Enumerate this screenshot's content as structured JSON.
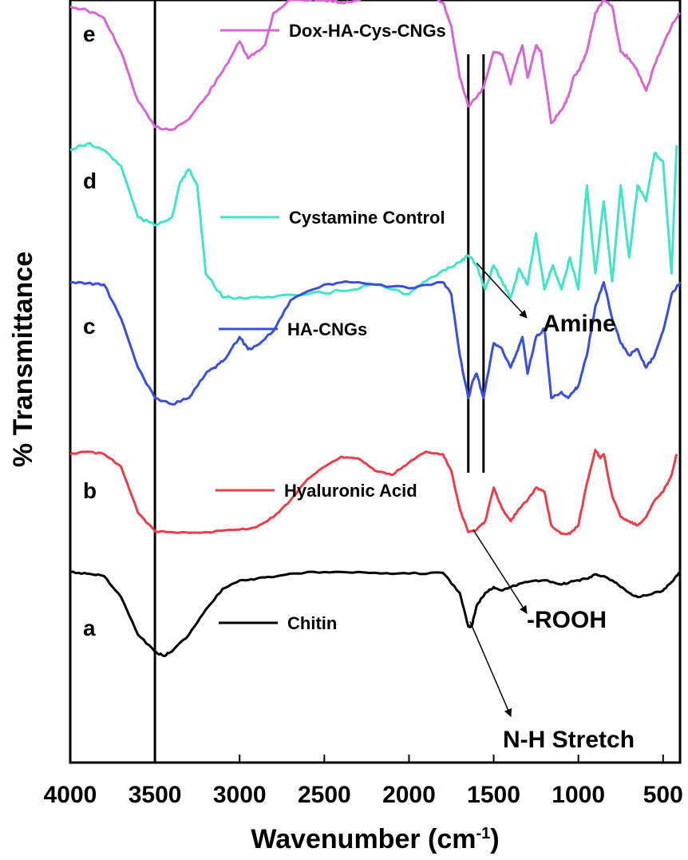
{
  "chart_data": {
    "type": "line",
    "title": "",
    "xlabel": "Wavenumber (cm",
    "xlabel_sup": "-1",
    "xlabel_close": ")",
    "ylabel": "% Transmittance",
    "xlim": [
      4000,
      400
    ],
    "x_reversed": true,
    "y_ticks_shown": false,
    "grid": false,
    "x_ticks": [
      4000,
      3500,
      3000,
      2500,
      2000,
      1500,
      1000,
      500
    ],
    "x_tick_labels": [
      "4000",
      "3500",
      "3000",
      "2500",
      "2000",
      "1500",
      "1000",
      "500"
    ],
    "y_unit": "relative transmittance (stacked, offset per spectrum; 0 = panel top, 1 = panel bottom)",
    "series": [
      {
        "name": "Dox-HA-Cys-CNGs",
        "letter": "e",
        "color": "#d966d6",
        "band": [
          0.0,
          0.17
        ],
        "points": [
          [
            4000,
            0.05
          ],
          [
            3900,
            0.08
          ],
          [
            3800,
            0.14
          ],
          [
            3700,
            0.4
          ],
          [
            3600,
            0.78
          ],
          [
            3500,
            0.98
          ],
          [
            3400,
            1.0
          ],
          [
            3300,
            0.92
          ],
          [
            3200,
            0.75
          ],
          [
            3100,
            0.55
          ],
          [
            3000,
            0.32
          ],
          [
            2950,
            0.45
          ],
          [
            2900,
            0.4
          ],
          [
            2850,
            0.35
          ],
          [
            2800,
            0.1
          ],
          [
            2700,
            0.0
          ],
          [
            2500,
            0.0
          ],
          [
            2400,
            0.02
          ],
          [
            2300,
            0.0
          ],
          [
            2100,
            -0.05
          ],
          [
            1900,
            -0.06
          ],
          [
            1800,
            0.02
          ],
          [
            1750,
            0.2
          ],
          [
            1700,
            0.6
          ],
          [
            1650,
            0.82
          ],
          [
            1600,
            0.75
          ],
          [
            1560,
            0.68
          ],
          [
            1500,
            0.4
          ],
          [
            1450,
            0.42
          ],
          [
            1400,
            0.65
          ],
          [
            1370,
            0.5
          ],
          [
            1330,
            0.35
          ],
          [
            1300,
            0.6
          ],
          [
            1250,
            0.35
          ],
          [
            1220,
            0.4
          ],
          [
            1160,
            0.95
          ],
          [
            1100,
            0.85
          ],
          [
            1060,
            0.75
          ],
          [
            1030,
            0.6
          ],
          [
            1000,
            0.55
          ],
          [
            950,
            0.4
          ],
          [
            900,
            0.1
          ],
          [
            850,
            0.0
          ],
          [
            800,
            0.05
          ],
          [
            750,
            0.4
          ],
          [
            700,
            0.45
          ],
          [
            650,
            0.55
          ],
          [
            600,
            0.7
          ],
          [
            550,
            0.5
          ],
          [
            500,
            0.35
          ],
          [
            450,
            0.2
          ],
          [
            400,
            0.1
          ]
        ]
      },
      {
        "name": "Cystamine Control",
        "letter": "d",
        "color": "#3fe6c8",
        "band": [
          0.18,
          0.39
        ],
        "points": [
          [
            4000,
            0.08
          ],
          [
            3900,
            0.04
          ],
          [
            3800,
            0.08
          ],
          [
            3700,
            0.18
          ],
          [
            3600,
            0.5
          ],
          [
            3500,
            0.55
          ],
          [
            3400,
            0.5
          ],
          [
            3350,
            0.28
          ],
          [
            3300,
            0.2
          ],
          [
            3250,
            0.3
          ],
          [
            3200,
            0.85
          ],
          [
            3100,
            1.0
          ],
          [
            3000,
            1.0
          ],
          [
            2800,
            1.0
          ],
          [
            2600,
            0.98
          ],
          [
            2400,
            0.96
          ],
          [
            2200,
            0.92
          ],
          [
            2000,
            0.98
          ],
          [
            1900,
            0.9
          ],
          [
            1800,
            0.83
          ],
          [
            1700,
            0.78
          ],
          [
            1650,
            0.74
          ],
          [
            1600,
            0.8
          ],
          [
            1550,
            0.95
          ],
          [
            1500,
            0.8
          ],
          [
            1450,
            0.9
          ],
          [
            1400,
            1.0
          ],
          [
            1350,
            0.82
          ],
          [
            1300,
            0.92
          ],
          [
            1250,
            0.6
          ],
          [
            1200,
            0.95
          ],
          [
            1150,
            0.8
          ],
          [
            1100,
            0.95
          ],
          [
            1050,
            0.75
          ],
          [
            1000,
            0.95
          ],
          [
            950,
            0.3
          ],
          [
            900,
            0.85
          ],
          [
            850,
            0.4
          ],
          [
            800,
            0.9
          ],
          [
            750,
            0.3
          ],
          [
            700,
            0.75
          ],
          [
            650,
            0.3
          ],
          [
            600,
            0.4
          ],
          [
            550,
            0.1
          ],
          [
            500,
            0.15
          ],
          [
            450,
            0.85
          ],
          [
            420,
            0.05
          ]
        ]
      },
      {
        "name": "HA-CNGs",
        "letter": "c",
        "color": "#3a4fe0",
        "band": [
          0.37,
          0.53
        ],
        "points": [
          [
            4000,
            0.0
          ],
          [
            3900,
            0.01
          ],
          [
            3800,
            0.02
          ],
          [
            3700,
            0.3
          ],
          [
            3600,
            0.7
          ],
          [
            3500,
            0.95
          ],
          [
            3400,
            1.0
          ],
          [
            3300,
            0.95
          ],
          [
            3200,
            0.75
          ],
          [
            3150,
            0.7
          ],
          [
            3100,
            0.65
          ],
          [
            3000,
            0.45
          ],
          [
            2950,
            0.55
          ],
          [
            2900,
            0.52
          ],
          [
            2800,
            0.4
          ],
          [
            2700,
            0.15
          ],
          [
            2500,
            0.02
          ],
          [
            2350,
            0.0
          ],
          [
            2200,
            0.02
          ],
          [
            2000,
            0.05
          ],
          [
            1800,
            0.0
          ],
          [
            1750,
            0.1
          ],
          [
            1700,
            0.6
          ],
          [
            1650,
            0.95
          ],
          [
            1620,
            0.8
          ],
          [
            1600,
            0.75
          ],
          [
            1560,
            0.95
          ],
          [
            1500,
            0.5
          ],
          [
            1450,
            0.55
          ],
          [
            1400,
            0.7
          ],
          [
            1370,
            0.6
          ],
          [
            1330,
            0.45
          ],
          [
            1300,
            0.75
          ],
          [
            1250,
            0.45
          ],
          [
            1200,
            0.38
          ],
          [
            1160,
            0.95
          ],
          [
            1100,
            0.9
          ],
          [
            1060,
            0.95
          ],
          [
            1030,
            0.9
          ],
          [
            1000,
            0.85
          ],
          [
            950,
            0.6
          ],
          [
            900,
            0.2
          ],
          [
            850,
            0.0
          ],
          [
            800,
            0.3
          ],
          [
            750,
            0.5
          ],
          [
            700,
            0.6
          ],
          [
            650,
            0.55
          ],
          [
            600,
            0.7
          ],
          [
            550,
            0.6
          ],
          [
            500,
            0.4
          ],
          [
            450,
            0.1
          ],
          [
            400,
            0.0
          ]
        ]
      },
      {
        "name": "Hyaluronic Acid",
        "letter": "b",
        "color": "#ee3d4a",
        "band": [
          0.59,
          0.7
        ],
        "points": [
          [
            4000,
            0.05
          ],
          [
            3900,
            0.02
          ],
          [
            3800,
            0.05
          ],
          [
            3700,
            0.2
          ],
          [
            3600,
            0.75
          ],
          [
            3500,
            0.97
          ],
          [
            3400,
            0.98
          ],
          [
            3200,
            0.98
          ],
          [
            3000,
            0.95
          ],
          [
            2900,
            0.92
          ],
          [
            2800,
            0.8
          ],
          [
            2700,
            0.6
          ],
          [
            2600,
            0.35
          ],
          [
            2500,
            0.2
          ],
          [
            2400,
            0.08
          ],
          [
            2300,
            0.1
          ],
          [
            2200,
            0.25
          ],
          [
            2100,
            0.3
          ],
          [
            2000,
            0.15
          ],
          [
            1900,
            0.02
          ],
          [
            1800,
            0.05
          ],
          [
            1750,
            0.25
          ],
          [
            1700,
            0.7
          ],
          [
            1650,
            0.98
          ],
          [
            1600,
            0.95
          ],
          [
            1550,
            0.85
          ],
          [
            1500,
            0.45
          ],
          [
            1450,
            0.7
          ],
          [
            1400,
            0.85
          ],
          [
            1350,
            0.7
          ],
          [
            1300,
            0.6
          ],
          [
            1250,
            0.45
          ],
          [
            1200,
            0.5
          ],
          [
            1160,
            0.9
          ],
          [
            1100,
            1.0
          ],
          [
            1050,
            1.0
          ],
          [
            1000,
            0.9
          ],
          [
            950,
            0.4
          ],
          [
            900,
            0.0
          ],
          [
            870,
            0.1
          ],
          [
            850,
            0.05
          ],
          [
            800,
            0.55
          ],
          [
            750,
            0.8
          ],
          [
            700,
            0.85
          ],
          [
            650,
            0.9
          ],
          [
            600,
            0.8
          ],
          [
            550,
            0.6
          ],
          [
            500,
            0.5
          ],
          [
            450,
            0.3
          ],
          [
            420,
            0.05
          ]
        ]
      },
      {
        "name": "Chitin",
        "letter": "a",
        "color": "#000000",
        "band": [
          0.75,
          0.86
        ],
        "points": [
          [
            4000,
            0.0
          ],
          [
            3900,
            0.02
          ],
          [
            3800,
            0.05
          ],
          [
            3700,
            0.3
          ],
          [
            3600,
            0.75
          ],
          [
            3500,
            0.95
          ],
          [
            3450,
            1.0
          ],
          [
            3400,
            0.95
          ],
          [
            3300,
            0.75
          ],
          [
            3200,
            0.45
          ],
          [
            3100,
            0.2
          ],
          [
            3000,
            0.1
          ],
          [
            2900,
            0.08
          ],
          [
            2800,
            0.06
          ],
          [
            2600,
            0.0
          ],
          [
            2400,
            0.0
          ],
          [
            2200,
            0.01
          ],
          [
            2000,
            0.02
          ],
          [
            1800,
            0.01
          ],
          [
            1700,
            0.25
          ],
          [
            1650,
            0.65
          ],
          [
            1630,
            0.65
          ],
          [
            1600,
            0.4
          ],
          [
            1550,
            0.25
          ],
          [
            1500,
            0.18
          ],
          [
            1450,
            0.22
          ],
          [
            1400,
            0.18
          ],
          [
            1300,
            0.12
          ],
          [
            1200,
            0.1
          ],
          [
            1100,
            0.15
          ],
          [
            1050,
            0.12
          ],
          [
            1000,
            0.1
          ],
          [
            950,
            0.08
          ],
          [
            900,
            0.03
          ],
          [
            850,
            0.05
          ],
          [
            800,
            0.1
          ],
          [
            750,
            0.18
          ],
          [
            700,
            0.25
          ],
          [
            650,
            0.3
          ],
          [
            600,
            0.28
          ],
          [
            500,
            0.22
          ],
          [
            450,
            0.12
          ],
          [
            400,
            0.0
          ]
        ]
      }
    ],
    "vertical_lines": [
      3500,
      1650,
      1560
    ],
    "annotations": [
      {
        "text": "Amine",
        "from_x": 1600,
        "from_band_y": 0.345
      },
      {
        "text": "-ROOH",
        "from_x": 1620,
        "from_band_y": 0.695
      },
      {
        "text": "N-H Stretch",
        "from_x": 1640,
        "from_band_y": 0.815
      }
    ]
  }
}
